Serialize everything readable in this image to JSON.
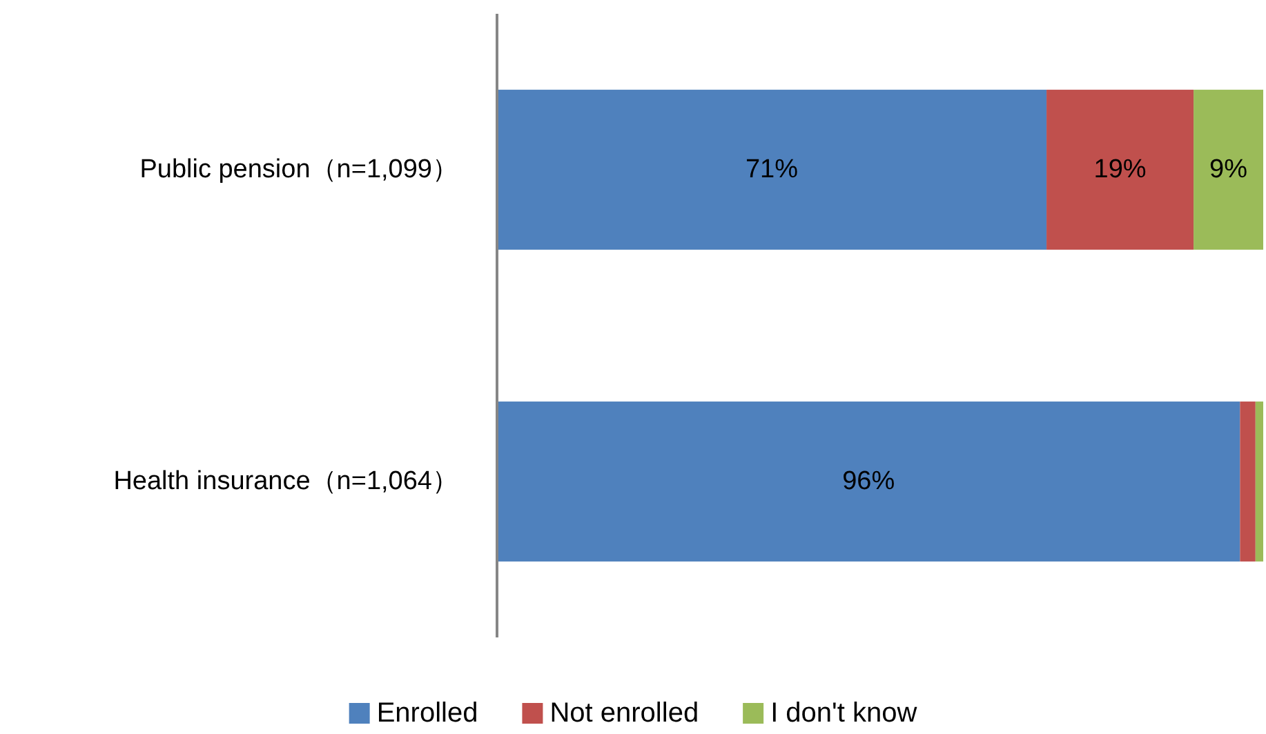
{
  "chart_data": {
    "type": "bar",
    "orientation": "horizontal",
    "stacked": true,
    "categories": [
      "Public pension（n=1,099）",
      "Health insurance（n=1,064）"
    ],
    "series": [
      {
        "name": "Enrolled",
        "color": "#4f81bd",
        "values": [
          71,
          96
        ],
        "value_labels": [
          "71%",
          "96%"
        ]
      },
      {
        "name": "Not enrolled",
        "color": "#c0504d",
        "values": [
          19,
          2
        ],
        "value_labels": [
          "19%",
          null
        ]
      },
      {
        "name": "I don't know",
        "color": "#9bbb59",
        "values": [
          9,
          1
        ],
        "value_labels": [
          "9%",
          null
        ]
      }
    ],
    "tick_labels": "y",
    "legend": "bottom"
  }
}
